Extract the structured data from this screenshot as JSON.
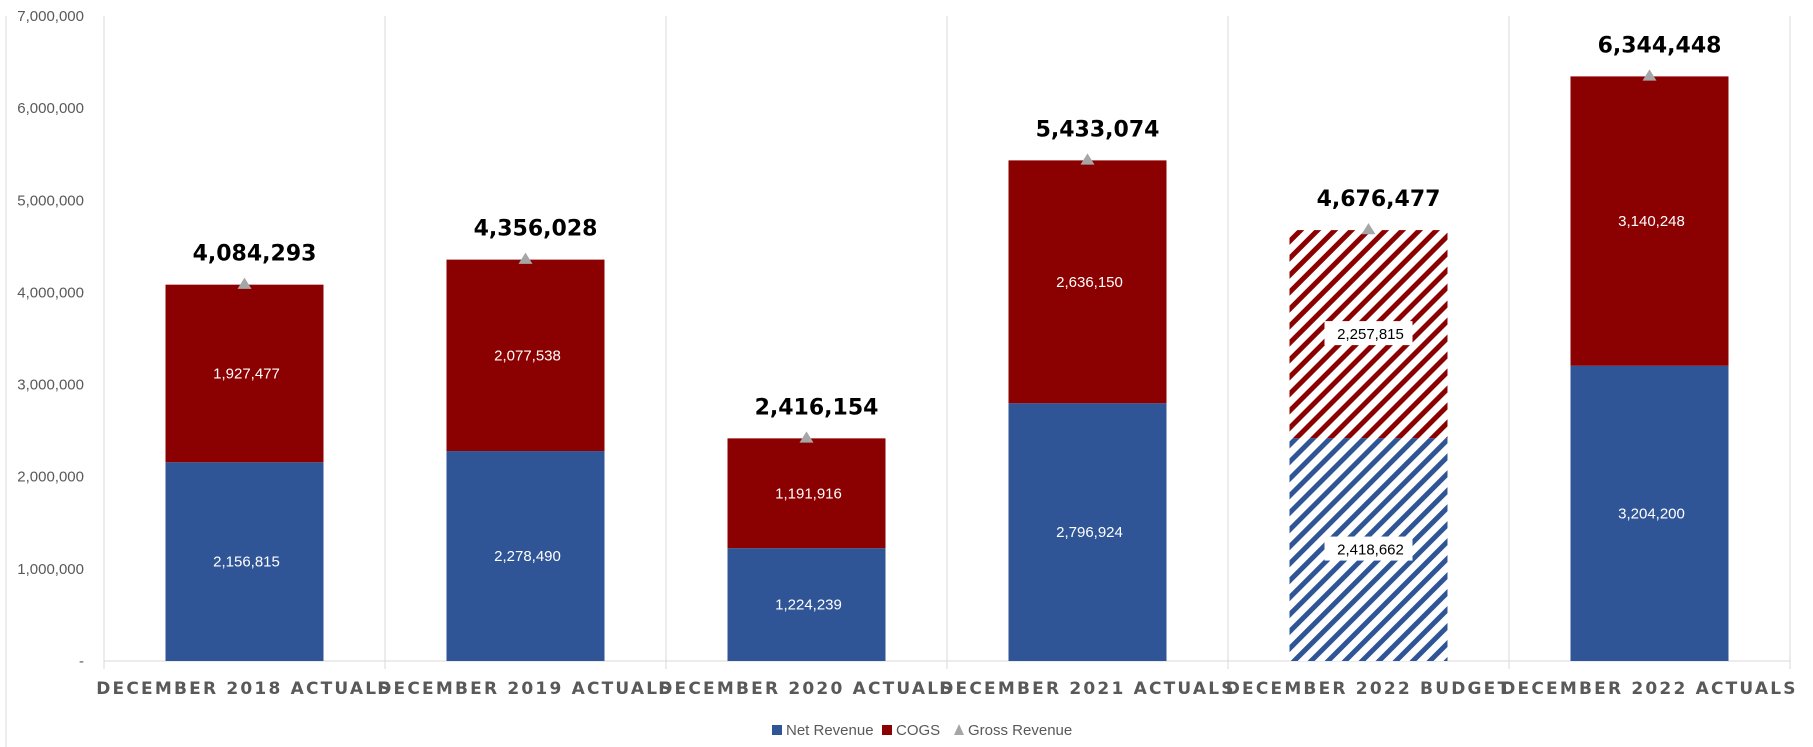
{
  "chart_data": {
    "type": "bar",
    "stacked": true,
    "categories": [
      "DECEMBER 2018 ACTUALS",
      "DECEMBER 2019 ACTUALS",
      "DECEMBER 2020 ACTUALS",
      "DECEMBER 2021 ACTUALS",
      "DECEMBER 2022 BUDGET",
      "DECEMBER 2022 ACTUALS"
    ],
    "series": [
      {
        "name": "Net Revenue",
        "color": "#2F5597",
        "values": [
          2156815,
          2278490,
          1224239,
          2796924,
          2418662,
          3204200
        ],
        "labels": [
          "2,156,815",
          "2,278,490",
          "1,224,239",
          "2,796,924",
          "2,418,662",
          "3,204,200"
        ]
      },
      {
        "name": "COGS",
        "color": "#8B0000",
        "values": [
          1927477,
          2077538,
          1191916,
          2636150,
          2257815,
          3140248
        ],
        "labels": [
          "1,927,477",
          "2,077,538",
          "1,191,916",
          "2,636,150",
          "2,257,815",
          "3,140,248"
        ]
      },
      {
        "name": "Gross Revenue",
        "type": "marker",
        "color": "#A6A6A6",
        "values": [
          4084293,
          4356028,
          2416154,
          5433074,
          4676477,
          6344448
        ],
        "labels": [
          "4,084,293",
          "4,356,028",
          "2,416,154",
          "5,433,074",
          "4,676,477",
          "6,344,448"
        ]
      }
    ],
    "hatched_categories": [
      "DECEMBER 2022 BUDGET"
    ],
    "ylim": [
      0,
      7000000
    ],
    "yticks": [
      0,
      1000000,
      2000000,
      3000000,
      4000000,
      5000000,
      6000000,
      7000000
    ],
    "ytick_labels": [
      "-",
      "1,000,000",
      "2,000,000",
      "3,000,000",
      "4,000,000",
      "5,000,000",
      "6,000,000",
      "7,000,000"
    ],
    "grid": "vertical separators",
    "legend_position": "bottom",
    "title": "",
    "xlabel": "",
    "ylabel": ""
  }
}
